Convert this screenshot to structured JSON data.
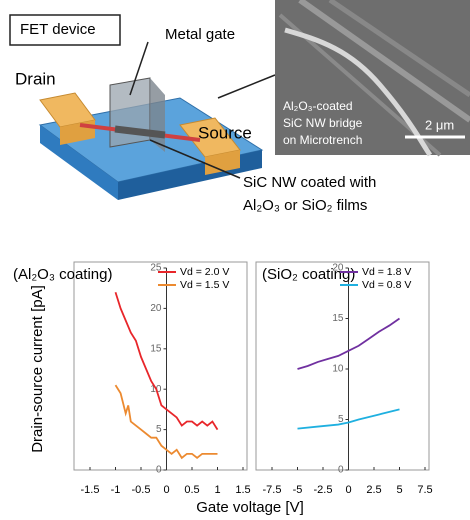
{
  "figure": {
    "device_label": "FET device",
    "gate_label": "Metal gate",
    "drain_label": "Drain",
    "source_label": "Source",
    "nanowire_label": [
      "SiC NW coated with",
      "Al₂O₃ or SiO₂ films"
    ],
    "sem_caption": [
      "Al₂O₃-coated",
      "SiC NW bridge",
      "on Microtrench"
    ],
    "scale_bar": "2 μm"
  },
  "chart_data": [
    {
      "type": "line",
      "title": "(Al₂O₃ coating)",
      "y_label": "Drain-source current [pA]",
      "x_label": "Gate voltage [V]",
      "xlim": [
        -1.5,
        1.5
      ],
      "xticks": [
        -1.5,
        -1,
        -0.5,
        0,
        0.5,
        1,
        1.5
      ],
      "ylim": [
        0,
        25
      ],
      "yticks": [
        0,
        5,
        10,
        15,
        20,
        25
      ],
      "series": [
        {
          "name": "Vd = 2.0 V",
          "color": "#e8262a",
          "x": [
            -1,
            -0.9,
            -0.8,
            -0.7,
            -0.6,
            -0.5,
            -0.4,
            -0.3,
            -0.2,
            -0.1,
            0,
            0.1,
            0.2,
            0.3,
            0.4,
            0.5,
            0.6,
            0.7,
            0.8,
            0.9,
            1
          ],
          "values": [
            22,
            20,
            18.5,
            17,
            16,
            14,
            12.5,
            11,
            10,
            8,
            7.5,
            7,
            6.5,
            5.5,
            6,
            6,
            5.5,
            6,
            5.5,
            6,
            5
          ]
        },
        {
          "name": "Vd = 1.5 V",
          "color": "#ec8a30",
          "x": [
            -1,
            -0.9,
            -0.8,
            -0.75,
            -0.7,
            -0.6,
            -0.5,
            -0.4,
            -0.3,
            -0.2,
            -0.1,
            0,
            0.1,
            0.2,
            0.3,
            0.4,
            0.5,
            0.6,
            0.7,
            0.8,
            0.9,
            1
          ],
          "values": [
            10.5,
            9.5,
            7,
            8,
            6,
            5.5,
            5,
            4.5,
            4,
            4,
            3,
            2.5,
            2,
            2.5,
            1.5,
            2,
            2,
            1.5,
            2,
            2,
            2,
            2
          ]
        }
      ]
    },
    {
      "type": "line",
      "title": "(SiO₂ coating)",
      "xlim": [
        -7.5,
        7.5
      ],
      "xticks": [
        -7.5,
        -5,
        -2.5,
        0,
        2.5,
        5,
        7.5
      ],
      "ylim": [
        0,
        20
      ],
      "yticks": [
        0,
        5,
        10,
        15,
        20
      ],
      "series": [
        {
          "name": "Vd = 1.8 V",
          "color": "#7030a0",
          "x": [
            -5,
            -4,
            -3,
            -2,
            -1,
            0,
            1,
            2,
            3,
            4,
            5
          ],
          "values": [
            10,
            10.3,
            10.7,
            11,
            11.3,
            11.8,
            12.3,
            13,
            13.7,
            14.3,
            15
          ]
        },
        {
          "name": "Vd = 0.8 V",
          "color": "#1fb0e0",
          "x": [
            -5,
            -3,
            -1,
            0,
            1,
            3,
            5
          ],
          "values": [
            4.1,
            4.3,
            4.5,
            4.7,
            5,
            5.5,
            6
          ]
        }
      ]
    }
  ]
}
